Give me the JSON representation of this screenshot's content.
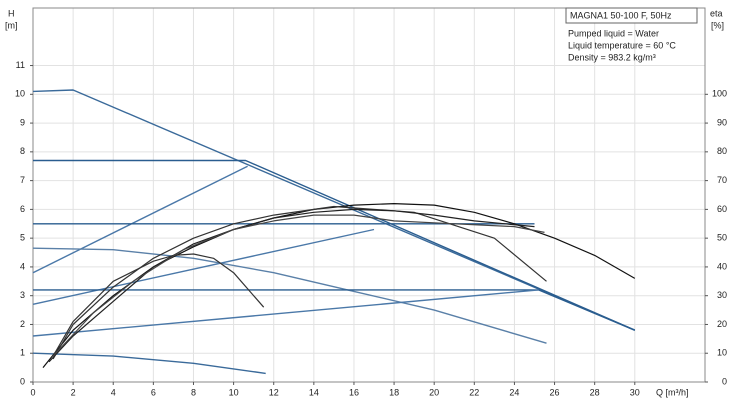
{
  "chart_data": {
    "type": "line",
    "y_label": "H",
    "y_unit": "[m]",
    "y2_label": "eta",
    "y2_unit": "[%]",
    "x_label": "Q [m³/h]",
    "info": [
      "MAGNA1 50-100 F, 50Hz",
      "Pumped liquid = Water",
      "Liquid temperature = 60 °C",
      "Density = 983.2 kg/m³"
    ],
    "xlim": [
      0,
      33.5
    ],
    "xticks": [
      0,
      2,
      4,
      6,
      8,
      10,
      12,
      14,
      16,
      18,
      20,
      22,
      24,
      26,
      28,
      30
    ],
    "ylim": [
      0,
      13
    ],
    "yticks": [
      0,
      1,
      2,
      3,
      4,
      5,
      6,
      7,
      8,
      9,
      10,
      11
    ],
    "y2lim": [
      0,
      130
    ],
    "y2ticks": [
      0,
      10,
      20,
      30,
      40,
      50,
      60,
      70,
      80,
      90,
      100
    ],
    "grid": true,
    "series": [
      {
        "color": "#3a6a9a",
        "x": [
          0,
          2,
          30
        ],
        "values": [
          10.1,
          10.15,
          1.8
        ]
      },
      {
        "color": "#2a5d8f",
        "x": [
          0,
          10.6,
          30
        ],
        "values": [
          7.7,
          7.7,
          1.8
        ]
      },
      {
        "color": "#4a78a8",
        "x": [
          0,
          10.7
        ],
        "values": [
          3.8,
          7.5
        ]
      },
      {
        "color": "#2a5d8f",
        "x": [
          0,
          25
        ],
        "values": [
          5.5,
          5.5
        ]
      },
      {
        "color": "#4a78a8",
        "x": [
          0,
          17
        ],
        "values": [
          2.7,
          5.3
        ]
      },
      {
        "color": "#5a80a8",
        "x": [
          0,
          4,
          8,
          12,
          16,
          20,
          25.6
        ],
        "values": [
          4.65,
          4.6,
          4.3,
          3.8,
          3.15,
          2.5,
          1.35
        ]
      },
      {
        "color": "#2a5d8f",
        "x": [
          0,
          25.2,
          30
        ],
        "values": [
          3.2,
          3.2,
          1.8
        ]
      },
      {
        "color": "#4a78a8",
        "x": [
          0,
          25.2
        ],
        "values": [
          1.6,
          3.2
        ]
      },
      {
        "color": "#3a6a9a",
        "x": [
          0,
          4,
          8,
          11.6
        ],
        "values": [
          1.0,
          0.9,
          0.65,
          0.3
        ]
      },
      {
        "color": "#111111",
        "axis": "y2",
        "x": [
          0.5,
          2,
          4,
          6,
          8,
          10,
          12,
          14,
          16,
          18,
          20,
          22,
          24,
          26,
          28,
          30
        ],
        "values": [
          5,
          18,
          30,
          40,
          47,
          53,
          57,
          60,
          61.5,
          62,
          61.5,
          59,
          55,
          50,
          44,
          36
        ]
      },
      {
        "color": "#333333",
        "axis": "y2",
        "x": [
          1,
          2,
          4,
          6,
          8,
          10,
          12,
          15,
          19,
          23,
          25.6
        ],
        "values": [
          8,
          20,
          33,
          43,
          50,
          55,
          58,
          61,
          59,
          50,
          35
        ]
      },
      {
        "color": "#333333",
        "axis": "y2",
        "x": [
          1,
          2,
          4,
          6,
          7,
          8,
          9,
          10,
          11.5
        ],
        "values": [
          9,
          21,
          35,
          42,
          44,
          44.5,
          43,
          38,
          26
        ]
      },
      {
        "color": "#222222",
        "axis": "y2",
        "x": [
          0.8,
          2,
          4,
          6,
          8,
          10,
          12,
          14,
          16,
          18,
          20,
          22,
          25
        ],
        "values": [
          7,
          16,
          28,
          40,
          48,
          53,
          57,
          59,
          60,
          59.5,
          58,
          56,
          54
        ]
      },
      {
        "color": "#444444",
        "axis": "y2",
        "x": [
          1,
          3,
          5,
          7.5,
          10,
          12,
          14,
          16,
          18,
          21,
          24,
          25.5
        ],
        "values": [
          9,
          24,
          35,
          46,
          53,
          56,
          58,
          58,
          56,
          55,
          54,
          52
        ]
      }
    ]
  }
}
